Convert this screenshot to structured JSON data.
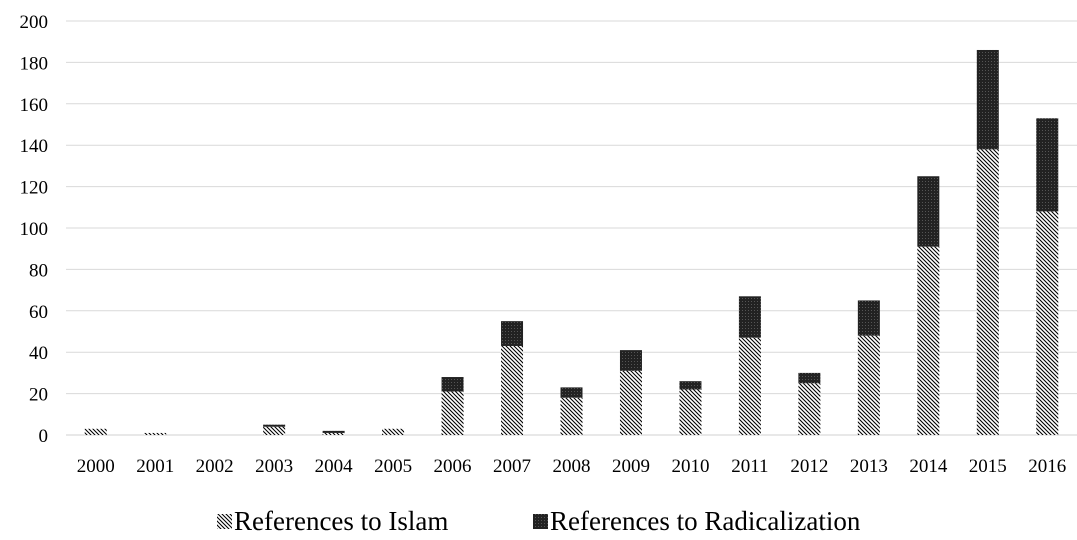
{
  "chart_data": {
    "type": "bar",
    "stacked": true,
    "categories": [
      "2000",
      "2001",
      "2002",
      "2003",
      "2004",
      "2005",
      "2006",
      "2007",
      "2008",
      "2009",
      "2010",
      "2011",
      "2012",
      "2013",
      "2014",
      "2015",
      "2016"
    ],
    "series": [
      {
        "name": "References to Islam",
        "values": [
          3,
          1,
          0,
          4,
          1,
          3,
          21,
          43,
          18,
          31,
          22,
          47,
          25,
          48,
          91,
          138,
          108
        ],
        "pattern": "diagonal-hatch",
        "color": "#000000"
      },
      {
        "name": "References to Radicalization",
        "values": [
          0,
          0,
          0,
          1,
          1,
          0,
          7,
          12,
          5,
          10,
          4,
          20,
          5,
          17,
          34,
          48,
          45
        ],
        "pattern": "solid-dark",
        "color": "#1e1e1e"
      }
    ],
    "ylim": [
      0,
      200
    ],
    "yticks": [
      0,
      20,
      40,
      60,
      80,
      100,
      120,
      140,
      160,
      180,
      200
    ],
    "grid": true,
    "legend_position": "bottom",
    "title": "",
    "xlabel": "",
    "ylabel": ""
  }
}
